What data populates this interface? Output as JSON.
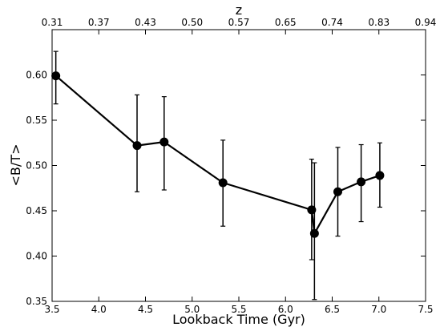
{
  "chart_data": {
    "type": "line",
    "title": "",
    "xlabel": "Lookback Time (Gyr)",
    "ylabel": "<B/T>",
    "top_xlabel": "z",
    "xlim": [
      3.5,
      7.5
    ],
    "ylim": [
      0.35,
      0.65
    ],
    "grid": false,
    "x_ticks": [
      3.5,
      4.0,
      4.5,
      5.0,
      5.5,
      6.0,
      6.5,
      7.0,
      7.5
    ],
    "x_tick_labels": [
      "3.5",
      "4.0",
      "4.5",
      "5.0",
      "5.5",
      "6.0",
      "6.5",
      "7.0",
      "7.5"
    ],
    "y_ticks": [
      0.35,
      0.4,
      0.45,
      0.5,
      0.55,
      0.6
    ],
    "y_tick_labels": [
      "0.35",
      "0.40",
      "0.45",
      "0.50",
      "0.55",
      "0.60"
    ],
    "top_x_ticks": [
      3.5,
      4.0,
      4.5,
      5.0,
      5.5,
      6.0,
      6.5,
      7.0,
      7.5
    ],
    "top_x_tick_labels": [
      "0.31",
      "0.37",
      "0.43",
      "0.50",
      "0.57",
      "0.65",
      "0.74",
      "0.83",
      "0.94"
    ],
    "series": [
      {
        "x": [
          3.54,
          4.41,
          4.7,
          5.33,
          6.28,
          6.31,
          6.56,
          6.81,
          7.01
        ],
        "y": [
          0.599,
          0.522,
          0.526,
          0.481,
          0.451,
          0.425,
          0.471,
          0.482,
          0.489
        ],
        "yerr_low": [
          0.568,
          0.471,
          0.473,
          0.433,
          0.396,
          0.352,
          0.422,
          0.438,
          0.454
        ],
        "yerr_high": [
          0.626,
          0.578,
          0.576,
          0.528,
          0.507,
          0.503,
          0.52,
          0.523,
          0.525
        ]
      }
    ],
    "style": {
      "line_color": "#000000",
      "marker_color": "#000000",
      "axis_color": "#000000",
      "background": "#ffffff"
    }
  }
}
